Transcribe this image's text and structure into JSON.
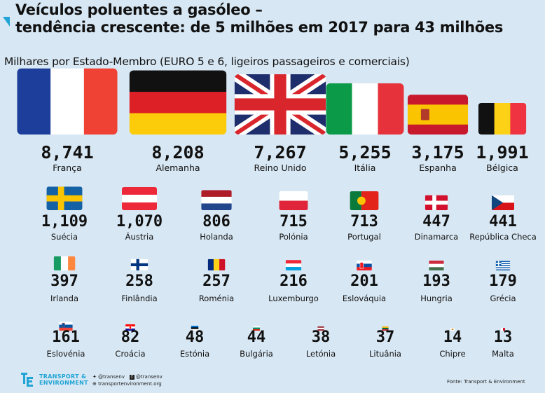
{
  "header": {
    "title_line1": "Veículos poluentes a gasóleo –",
    "title_line2": "tendência crescente: de 5 milhões em 2017 para 43 milhões",
    "subtitle": "Milhares por Estado-Membro (EURO 5 e 6, ligeiros passageiros e comerciais)"
  },
  "chart_data": {
    "type": "pictogram",
    "unit": "milhares",
    "categories": [
      "França",
      "Alemanha",
      "Reino Unido",
      "Itália",
      "Espanha",
      "Bélgica",
      "Suécia",
      "Áustria",
      "Holanda",
      "Polónia",
      "Portugal",
      "Dinamarca",
      "República Checa",
      "Irlanda",
      "Finlândia",
      "Roménia",
      "Luxemburgo",
      "Eslováquia",
      "Hungria",
      "Grécia",
      "Eslovénia",
      "Croácia",
      "Estónia",
      "Bulgária",
      "Letónia",
      "Lituânia",
      "Chipre",
      "Malta"
    ],
    "values": [
      8741,
      8208,
      7267,
      5255,
      3175,
      1991,
      1109,
      1070,
      806,
      715,
      713,
      447,
      441,
      397,
      258,
      257,
      216,
      201,
      193,
      179,
      161,
      82,
      48,
      44,
      38,
      37,
      14,
      13
    ],
    "value_labels": [
      "8,741",
      "8,208",
      "7,267",
      "5,255",
      "3,175",
      "1,991",
      "1,109",
      "1,070",
      "806",
      "715",
      "713",
      "447",
      "441",
      "397",
      "258",
      "257",
      "216",
      "201",
      "193",
      "179",
      "161",
      "82",
      "48",
      "44",
      "38",
      "37",
      "14",
      "13"
    ],
    "flags": [
      "france",
      "germany",
      "united-kingdom",
      "italy",
      "spain",
      "belgium",
      "sweden",
      "austria",
      "netherlands",
      "poland",
      "portugal",
      "denmark",
      "czech-republic",
      "ireland",
      "finland",
      "romania",
      "luxembourg",
      "slovakia",
      "hungary",
      "greece",
      "slovenia",
      "croatia",
      "estonia",
      "bulgaria",
      "latvia",
      "lithuania",
      "cyprus",
      "malta"
    ],
    "encoding": "flag area proportional to value"
  },
  "footer": {
    "logo_line1": "TRANSPORT &",
    "logo_line2": "ENVIRONMENT",
    "twitter": "@transenv",
    "facebook": "@transenv",
    "website": "transportenvironment.org",
    "source": "Fonte: Transport & Environment"
  },
  "colors": {
    "background": "#d7e7f3",
    "accent": "#22a5d6"
  }
}
